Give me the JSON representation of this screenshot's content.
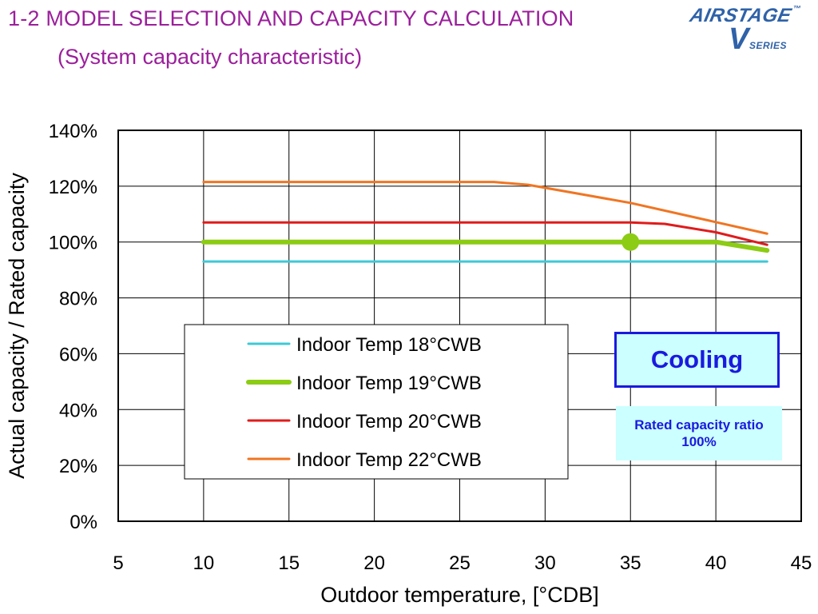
{
  "header": {
    "title": "1-2 MODEL SELECTION AND CAPACITY CALCULATION",
    "subtitle": "(System capacity characteristic)"
  },
  "logo": {
    "brand": "AIRSTAGE",
    "trademark": "™",
    "v": "V",
    "series": "SERIES",
    "color": "#2f62a8"
  },
  "chart_data": {
    "type": "line",
    "xlabel": "Outdoor temperature,   [°CDB]",
    "ylabel": "Actual capacity / Rated capacity",
    "xlim": [
      5,
      45
    ],
    "ylim": [
      0,
      140
    ],
    "x_ticks": [
      "5",
      "10",
      "15",
      "20",
      "25",
      "30",
      "35",
      "40",
      "45"
    ],
    "y_ticks": [
      "0%",
      "20%",
      "40%",
      "60%",
      "80%",
      "100%",
      "120%",
      "140%"
    ],
    "grid": true,
    "legend_position": "center-left",
    "series": [
      {
        "name": "Indoor Temp 18°CWB",
        "color": "#3ec9d6",
        "width": 3,
        "x": [
          10,
          43
        ],
        "y": [
          93,
          93
        ]
      },
      {
        "name": "Indoor Temp 19°CWB",
        "color": "#8ccc14",
        "width": 6,
        "x": [
          10,
          40,
          43
        ],
        "y": [
          100,
          100,
          97
        ]
      },
      {
        "name": "Indoor Temp 20°CWB",
        "color": "#e01b1b",
        "width": 3,
        "x": [
          10,
          35,
          37,
          40,
          43
        ],
        "y": [
          107,
          107,
          106.5,
          103.5,
          99
        ]
      },
      {
        "name": "Indoor Temp 22°CWB",
        "color": "#f07522",
        "width": 3,
        "x": [
          10,
          27,
          29,
          35,
          43
        ],
        "y": [
          121.5,
          121.5,
          120.5,
          114,
          103
        ]
      }
    ],
    "marker": {
      "x": 35,
      "y": 100,
      "color": "#8ccc14"
    }
  },
  "cooling_label": "Cooling",
  "rated_ratio": {
    "line1": "Rated capacity ratio",
    "line2": "100%"
  }
}
